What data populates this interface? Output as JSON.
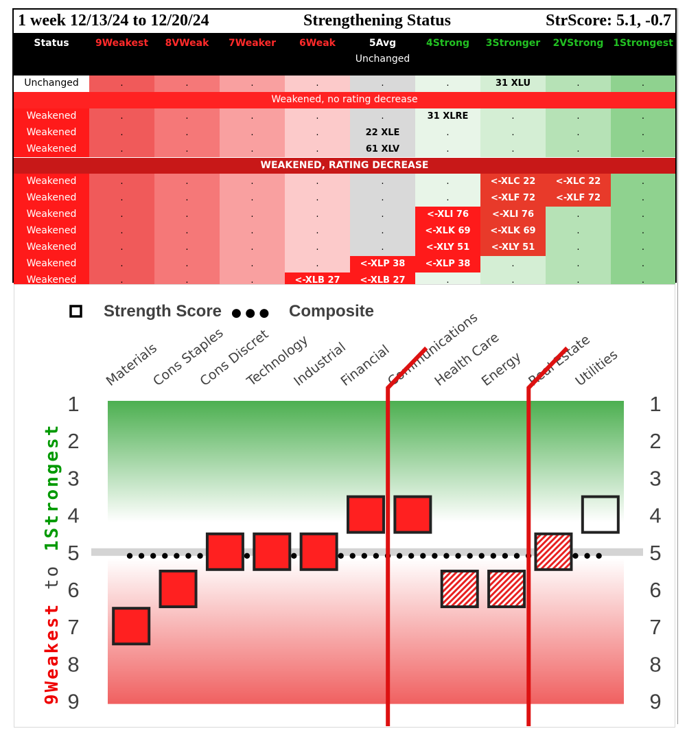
{
  "status_panel": {
    "title_left": "1 week 12/13/24 to 12/20/24",
    "title_center": "Strengthening Status",
    "title_right": "StrScore: 5.1, -0.7",
    "status_header": "Status",
    "rating_headers": [
      "9Weakest",
      "8VWeak",
      "7Weaker",
      "6Weak",
      "5Avg",
      "4Strong",
      "3Stronger",
      "2VStrong",
      "1Strongest"
    ],
    "avg_sub_header": "Unchanged",
    "header_colors": {
      "weak": "#ff2a2a",
      "avg": "#ffffff",
      "strong": "#22c022"
    },
    "sections": [
      {
        "banner": "Weakened, no rating decrease",
        "banner_style": "light"
      },
      {
        "banner": "WEAKENED, RATING DECREASE",
        "banner_style": "dark"
      }
    ],
    "empty_mark": ".",
    "rows": [
      {
        "status": "Unchanged",
        "section": -1,
        "cells": {
          "6": "31 XLU"
        }
      },
      {
        "status": "Weakened",
        "section": 0,
        "cells": {
          "5": "31 XLRE"
        }
      },
      {
        "status": "Weakened",
        "section": 0,
        "cells": {
          "4": "22 XLE"
        }
      },
      {
        "status": "Weakened",
        "section": 0,
        "cells": {
          "4": "61 XLV"
        }
      },
      {
        "status": "Weakened",
        "section": 1,
        "cells": {
          "6": "<-XLC 22",
          "7": "<-XLC 22"
        },
        "red": [
          6,
          7
        ]
      },
      {
        "status": "Weakened",
        "section": 1,
        "cells": {
          "6": "<-XLF 72",
          "7": "<-XLF 72"
        },
        "red": [
          6,
          7
        ]
      },
      {
        "status": "Weakened",
        "section": 1,
        "cells": {
          "5": "<-XLI 76",
          "6": "<-XLI 76"
        },
        "red": [
          5,
          6
        ]
      },
      {
        "status": "Weakened",
        "section": 1,
        "cells": {
          "5": "<-XLK 69",
          "6": "<-XLK 69"
        },
        "red": [
          5,
          6
        ]
      },
      {
        "status": "Weakened",
        "section": 1,
        "cells": {
          "5": "<-XLY 51",
          "6": "<-XLY 51"
        },
        "red": [
          5,
          6
        ]
      },
      {
        "status": "Weakened",
        "section": 1,
        "cells": {
          "4": "<-XLP 38",
          "5": "<-XLP 38"
        },
        "red": [
          4,
          5
        ]
      },
      {
        "status": "Weakened",
        "section": 1,
        "cells": {
          "3": "<-XLB 27",
          "4": "<-XLB 27"
        },
        "red": [
          3,
          4
        ]
      }
    ]
  },
  "chart_data": {
    "type": "scatter",
    "legend": {
      "score_label": "Strength Score",
      "dots": "● ● ●",
      "composite_label": "Composite"
    },
    "y_axis_label_weak": "9Weakest",
    "y_axis_label_to": "to",
    "y_axis_label_strong": "1Strongest",
    "y_ticks": [
      1,
      2,
      3,
      4,
      5,
      6,
      7,
      8,
      9
    ],
    "ylim": [
      1,
      9
    ],
    "y_inverted": true,
    "categories": [
      "Materials",
      "Cons Staples",
      "Cons Discret",
      "Technology",
      "Industrial",
      "Financial",
      "Communications",
      "Health Care",
      "Energy",
      "Real Estate",
      "Utilities"
    ],
    "strength_score": [
      7,
      6,
      5,
      5,
      5,
      4,
      4,
      6,
      6,
      5,
      4
    ],
    "marker_style": [
      "solid",
      "solid",
      "solid",
      "solid",
      "solid",
      "solid",
      "solid",
      "hatched",
      "hatched",
      "hatched",
      "outline"
    ],
    "composite_line": 5,
    "dividers_after": [
      "Financial",
      "Energy"
    ],
    "colors": {
      "solid": "#ff2020",
      "hatched": "#e82020",
      "outline": "#ffffff",
      "divider": "#dd1111",
      "strong_label": "#009900",
      "weak_label": "#ee0000"
    }
  }
}
